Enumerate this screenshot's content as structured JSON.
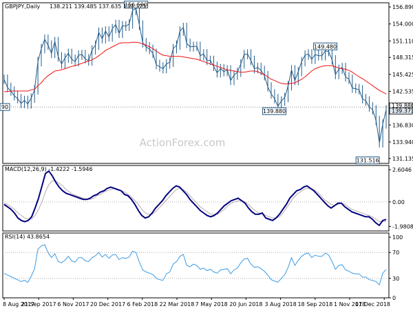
{
  "header": {
    "symbol": "GBPJPY,Daily",
    "ohlc": "138.211 139.485 137.635 139.373"
  },
  "watermark": "ActionForex.com",
  "colors": {
    "price": "#1f5a8a",
    "ma": "#ee1010",
    "macd": "#000080",
    "signal": "#b9a9a9",
    "rsi": "#3a9be5",
    "level_line": "#888888",
    "grid": "#aaaaaa"
  },
  "chart_data": [
    {
      "type": "line",
      "pane": "price",
      "series": [
        {
          "key": "price",
          "values": [
            144.6,
            143.2,
            142.6,
            141.8,
            141.3,
            140.5,
            141.0,
            140.4,
            141.4,
            142.8,
            147.6,
            149.8,
            151.4,
            150.4,
            149.0,
            151.0,
            148.4,
            147.2,
            148.2,
            149.0,
            148.0,
            147.6,
            148.7,
            148.8,
            148.1,
            147.7,
            149.6,
            150.4,
            152.6,
            151.5,
            152.8,
            151.8,
            153.2,
            153.9,
            152.4,
            153.7,
            153.6,
            154.0,
            156.3,
            156.6,
            153.8,
            150.8,
            150.1,
            149.7,
            149.0,
            147.1,
            146.7,
            146.4,
            147.2,
            147.5,
            149.8,
            150.4,
            152.8,
            153.4,
            150.7,
            150.1,
            150.2,
            150.2,
            148.6,
            148.9,
            147.8,
            147.8,
            146.8,
            145.7,
            146.4,
            145.9,
            146.2,
            144.4,
            145.3,
            145.8,
            147.2,
            148.8,
            148.9,
            147.8,
            146.4,
            146.6,
            146.1,
            145.2,
            143.3,
            142.1,
            141.3,
            140.0,
            140.9,
            141.5,
            143.5,
            146.2,
            144.4,
            145.9,
            147.6,
            148.7,
            148.9,
            148.0,
            148.8,
            148.6,
            148.6,
            149.4,
            149.3,
            147.9,
            145.4,
            146.3,
            146.6,
            145.0,
            144.6,
            143.1,
            143.0,
            142.8,
            141.3,
            140.9,
            139.9,
            139.4,
            137.6,
            133.8,
            137.0,
            139.4
          ]
        },
        {
          "key": "ma",
          "values": [
            142.5,
            142.5,
            142.6,
            142.6,
            142.6,
            142.6,
            142.6,
            142.6,
            142.8,
            142.9,
            143.5,
            144.0,
            144.7,
            145.2,
            145.6,
            146.0,
            146.1,
            146.2,
            146.4,
            146.6,
            146.8,
            146.9,
            147.1,
            147.3,
            147.5,
            147.7,
            147.9,
            148.2,
            148.6,
            149.0,
            149.5,
            149.8,
            150.1,
            150.4,
            150.7,
            150.8,
            150.8,
            150.8,
            150.9,
            150.9,
            150.8,
            150.6,
            150.4,
            150.1,
            149.8,
            149.4,
            149.0,
            148.7,
            148.6,
            148.5,
            148.5,
            148.5,
            148.5,
            148.4,
            148.3,
            148.2,
            148.1,
            148.0,
            147.8,
            147.6,
            147.4,
            147.2,
            147.0,
            146.8,
            146.6,
            146.4,
            146.2,
            146.1,
            146.0,
            145.9,
            145.8,
            145.8,
            145.9,
            146.0,
            146.0,
            145.9,
            145.6,
            145.4,
            145.0,
            144.6,
            144.4,
            144.1,
            143.9,
            143.8,
            143.8,
            143.9,
            144.0,
            144.3,
            144.6,
            145.0,
            145.5,
            146.0,
            146.4,
            146.6,
            146.8,
            146.9,
            146.9,
            146.9,
            146.7,
            146.5,
            146.4,
            146.3,
            146.1,
            145.8,
            145.4,
            145.0,
            144.7,
            144.3,
            143.9,
            143.5,
            143.1,
            142.7,
            142.4,
            142.1
          ]
        }
      ],
      "x_ticks": [
        "8 Aug 2017",
        "21 Sep 2017",
        "6 Nov 2017",
        "20 Dec 2017",
        "6 Feb 2018",
        "22 Mar 2018",
        "7 May 2018",
        "20 Jun 2018",
        "3 Aug 2018",
        "18 Sep 2018",
        "1 Nov 2018",
        "17 Dec 2018"
      ],
      "y_ticks": [
        "156.890",
        "154.000",
        "151.110",
        "148.315",
        "145.425",
        "142.535",
        "139.880",
        "136.830",
        "133.940",
        "131.135"
      ],
      "y_range": [
        130.3,
        157.6
      ],
      "level": {
        "value": 139.88,
        "left_label": "90"
      },
      "annotations": [
        "156.590",
        "149.480",
        "139.880",
        "131.516"
      ],
      "current_price_label": "139.373"
    },
    {
      "type": "line",
      "pane": "macd",
      "title": "MACD(12,26,9) -1.4222 -1.5946",
      "series": [
        {
          "key": "macd",
          "values": [
            -0.2,
            -0.4,
            -0.6,
            -0.9,
            -1.3,
            -1.5,
            -1.6,
            -1.5,
            -1.2,
            -0.5,
            0.3,
            1.3,
            2.3,
            2.5,
            2.1,
            1.6,
            1.2,
            0.9,
            0.7,
            0.6,
            0.5,
            0.4,
            0.3,
            0.2,
            0.2,
            0.3,
            0.5,
            0.6,
            0.8,
            0.9,
            1.1,
            1.2,
            1.1,
            1.0,
            0.9,
            0.6,
            0.5,
            0.2,
            -0.2,
            -0.7,
            -1.1,
            -1.3,
            -1.2,
            -0.9,
            -0.5,
            -0.2,
            0.1,
            0.5,
            0.8,
            1.1,
            1.3,
            1.2,
            0.9,
            0.6,
            0.2,
            -0.1,
            -0.4,
            -0.7,
            -0.9,
            -1.1,
            -1.2,
            -1.1,
            -0.9,
            -0.6,
            -0.3,
            -0.1,
            0.1,
            0.2,
            0.3,
            0.1,
            -0.1,
            -0.5,
            -0.8,
            -1.0,
            -1.0,
            -0.9,
            -1.3,
            -1.4,
            -1.5,
            -1.3,
            -1.0,
            -0.6,
            -0.2,
            0.3,
            0.6,
            0.9,
            1.0,
            1.2,
            1.3,
            1.1,
            0.9,
            0.6,
            0.3,
            0.0,
            -0.3,
            -0.5,
            -0.3,
            -0.1,
            -0.1,
            -0.4,
            -0.6,
            -0.8,
            -0.9,
            -1.0,
            -1.1,
            -1.2,
            -1.2,
            -1.4,
            -1.7,
            -1.9,
            -1.5,
            -1.42
          ]
        },
        {
          "key": "signal",
          "values": [
            -0.1,
            -0.2,
            -0.4,
            -0.6,
            -0.9,
            -1.1,
            -1.3,
            -1.4,
            -1.4,
            -1.1,
            -0.6,
            0.0,
            0.8,
            1.4,
            1.7,
            1.7,
            1.5,
            1.3,
            1.0,
            0.8,
            0.6,
            0.5,
            0.4,
            0.3,
            0.2,
            0.2,
            0.3,
            0.5,
            0.6,
            0.8,
            0.9,
            1.0,
            1.1,
            1.0,
            0.9,
            0.8,
            0.6,
            0.4,
            0.1,
            -0.2,
            -0.6,
            -0.9,
            -1.0,
            -1.0,
            -0.8,
            -0.5,
            -0.2,
            0.1,
            0.4,
            0.7,
            1.0,
            1.1,
            1.0,
            0.8,
            0.5,
            0.2,
            -0.1,
            -0.4,
            -0.6,
            -0.8,
            -1.0,
            -1.0,
            -1.0,
            -0.8,
            -0.6,
            -0.3,
            -0.1,
            0.0,
            0.1,
            0.1,
            0.0,
            -0.2,
            -0.5,
            -0.7,
            -0.9,
            -0.9,
            -1.1,
            -1.2,
            -1.3,
            -1.3,
            -1.2,
            -0.9,
            -0.5,
            -0.1,
            0.3,
            0.6,
            0.8,
            1.0,
            1.1,
            1.1,
            1.0,
            0.8,
            0.5,
            0.2,
            0.0,
            -0.2,
            -0.3,
            -0.2,
            -0.1,
            -0.2,
            -0.4,
            -0.6,
            -0.7,
            -0.8,
            -0.9,
            -1.0,
            -1.1,
            -1.2,
            -1.4,
            -1.6,
            -1.59,
            -1.59
          ]
        }
      ],
      "y_ticks": [
        "2.6046",
        "0.00",
        "-1.9808"
      ],
      "y_range": [
        -2.35,
        2.95
      ]
    },
    {
      "type": "line",
      "pane": "rsi",
      "title": "RSI(14) 43.8654",
      "series": [
        {
          "key": "rsi",
          "values": [
            38,
            35,
            33,
            30,
            28,
            25,
            27,
            24,
            33,
            45,
            75,
            80,
            82,
            70,
            62,
            68,
            56,
            54,
            58,
            64,
            57,
            55,
            62,
            62,
            57,
            56,
            62,
            65,
            70,
            63,
            67,
            61,
            66,
            67,
            59,
            62,
            61,
            63,
            72,
            70,
            55,
            43,
            40,
            38,
            36,
            30,
            28,
            27,
            37,
            40,
            52,
            56,
            64,
            67,
            50,
            48,
            52,
            50,
            44,
            46,
            42,
            44,
            40,
            38,
            43,
            44,
            45,
            37,
            43,
            46,
            54,
            60,
            61,
            52,
            47,
            48,
            45,
            41,
            35,
            28,
            26,
            24,
            30,
            36,
            47,
            62,
            50,
            58,
            64,
            68,
            69,
            62,
            66,
            64,
            64,
            69,
            66,
            56,
            44,
            50,
            51,
            43,
            41,
            38,
            37,
            37,
            32,
            32,
            28,
            27,
            25,
            20,
            38,
            43.9
          ]
        }
      ],
      "y_ticks": [
        "100",
        "70",
        "30",
        "0"
      ],
      "y_range": [
        0,
        100
      ],
      "levels": [
        70,
        30
      ]
    }
  ]
}
